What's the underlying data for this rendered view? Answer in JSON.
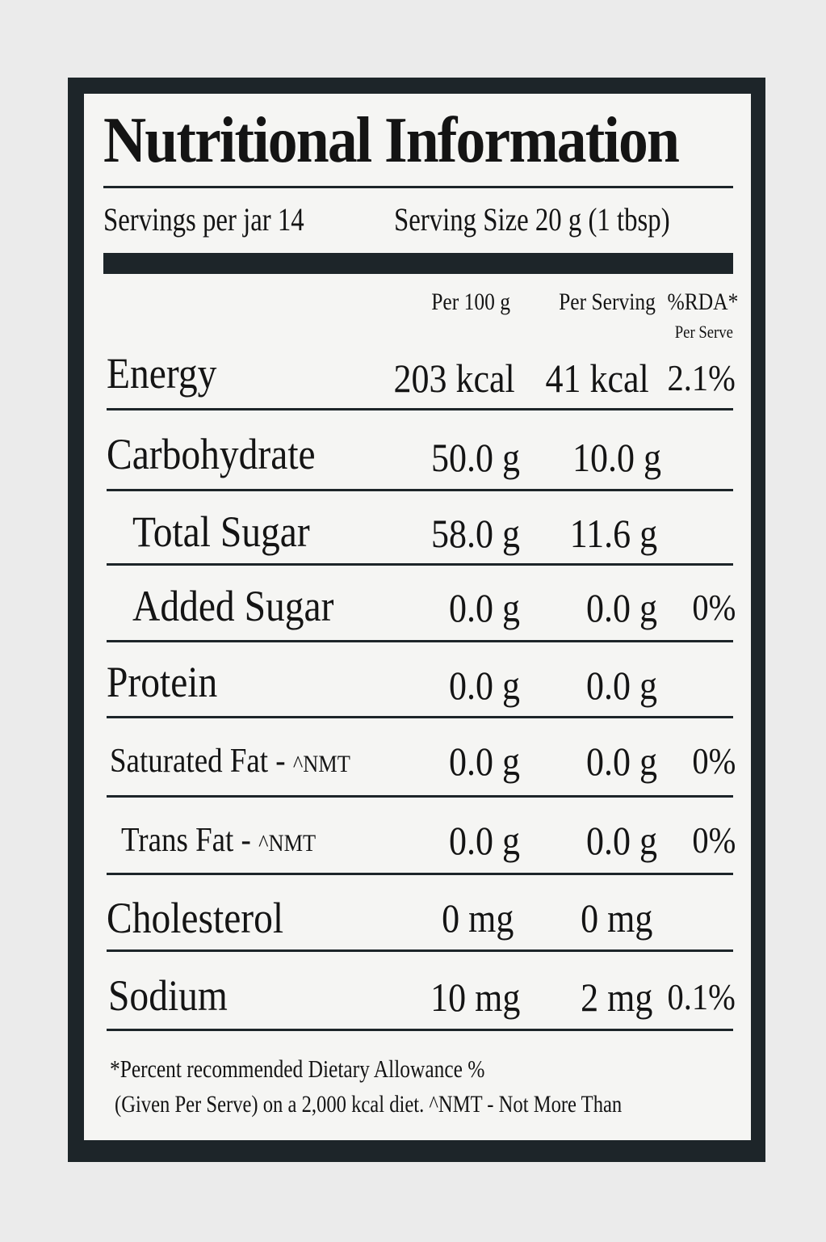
{
  "label": {
    "title": "Nutritional Information",
    "servings_per_jar": "Servings per jar 14",
    "serving_size": "Serving Size  20 g (1 tbsp)",
    "columns": {
      "per100": "Per 100 g",
      "per_serving": "Per Serving",
      "rda": "%RDA*",
      "rda_sub": "Per Serve"
    },
    "rows": [
      {
        "name": "Energy",
        "nmt": "",
        "per100": "203 kcal",
        "per_serving": "41 kcal",
        "rda": "2.1%"
      },
      {
        "name": "Carbohydrate",
        "nmt": "",
        "per100": "50.0 g",
        "per_serving": "10.0 g",
        "rda": ""
      },
      {
        "name": "Total Sugar",
        "nmt": "",
        "per100": "58.0 g",
        "per_serving": "11.6 g",
        "rda": ""
      },
      {
        "name": "Added Sugar",
        "nmt": "",
        "per100": "0.0 g",
        "per_serving": "0.0 g",
        "rda": "0%"
      },
      {
        "name": "Protein",
        "nmt": "",
        "per100": "0.0 g",
        "per_serving": "0.0 g",
        "rda": ""
      },
      {
        "name": "Saturated Fat - ",
        "nmt": "^NMT",
        "per100": "0.0 g",
        "per_serving": "0.0 g",
        "rda": "0%"
      },
      {
        "name": "Trans Fat - ",
        "nmt": "^NMT",
        "per100": "0.0 g",
        "per_serving": "0.0 g",
        "rda": "0%"
      },
      {
        "name": "Cholesterol",
        "nmt": "",
        "per100": "0 mg",
        "per_serving": "0 mg",
        "rda": ""
      },
      {
        "name": "Sodium",
        "nmt": "",
        "per100": "10 mg",
        "per_serving": "2 mg",
        "rda": "0.1%"
      }
    ],
    "footnote_line1": "*Percent recommended Dietary Allowance %",
    "footnote_line2": "(Given Per Serve)  on a 2,000 kcal diet. ^NMT - Not More Than"
  }
}
